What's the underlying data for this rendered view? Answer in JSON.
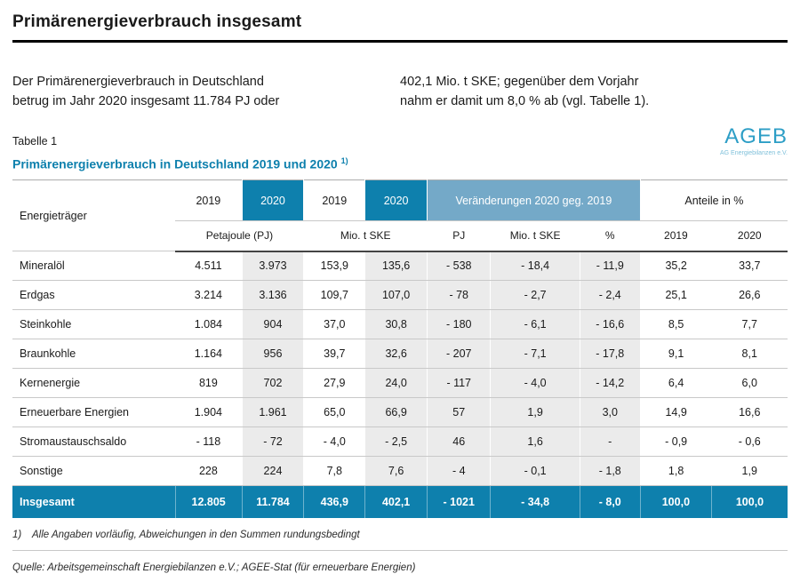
{
  "page": {
    "title": "Primärenergieverbrauch insgesamt",
    "intro": {
      "left": "Der Primärenergieverbrauch in Deutschland\nbetrug im Jahr 2020 insgesamt 11.784 PJ oder",
      "right": "402,1 Mio. t SKE; gegenüber dem Vorjahr\nnahm er damit um 8,0 % ab (vgl. Tabelle 1)."
    },
    "table_label": "Tabelle 1",
    "logo": {
      "title": "AGEB",
      "subtitle": "AG Energiebilanzen e.V."
    },
    "table_title": "Primärenergieverbrauch in Deutschland 2019 und 2020 ",
    "table_title_footnote": "1)",
    "footnote": {
      "marker": "1)",
      "text": "Alle Angaben vorläufig, Abweichungen in den Summen rundungsbedingt"
    },
    "source": "Quelle: Arbeitsgemeinschaft Energiebilanzen e.V.; AGEE-Stat (für erneuerbare Energien)"
  },
  "table": {
    "row_header_label": "Energieträger",
    "year_headers": [
      "2019",
      "2020",
      "2019",
      "2020"
    ],
    "group_headers": {
      "changes": "Veränderungen 2020 geg. 2019",
      "shares": "Anteile in %"
    },
    "unit_headers": [
      "Petajoule (PJ)",
      "Mio. t SKE",
      "PJ",
      "Mio. t SKE",
      "%",
      "2019",
      "2020"
    ],
    "rows": [
      {
        "label": "Mineralöl",
        "values": [
          "4.511",
          "3.973",
          "153,9",
          "135,6",
          "- 538",
          "- 18,4",
          "- 11,9",
          "35,2",
          "33,7"
        ]
      },
      {
        "label": "Erdgas",
        "values": [
          "3.214",
          "3.136",
          "109,7",
          "107,0",
          "- 78",
          "- 2,7",
          "- 2,4",
          "25,1",
          "26,6"
        ]
      },
      {
        "label": "Steinkohle",
        "values": [
          "1.084",
          "904",
          "37,0",
          "30,8",
          "- 180",
          "- 6,1",
          "- 16,6",
          "8,5",
          "7,7"
        ]
      },
      {
        "label": "Braunkohle",
        "values": [
          "1.164",
          "956",
          "39,7",
          "32,6",
          "- 207",
          "- 7,1",
          "- 17,8",
          "9,1",
          "8,1"
        ]
      },
      {
        "label": "Kernenergie",
        "values": [
          "819",
          "702",
          "27,9",
          "24,0",
          "- 117",
          "- 4,0",
          "- 14,2",
          "6,4",
          "6,0"
        ]
      },
      {
        "label": "Erneuerbare Energien",
        "values": [
          "1.904",
          "1.961",
          "65,0",
          "66,9",
          "57",
          "1,9",
          "3,0",
          "14,9",
          "16,6"
        ]
      },
      {
        "label": "Stromaustauschsaldo",
        "values": [
          "- 118",
          "- 72",
          "- 4,0",
          "- 2,5",
          "46",
          "1,6",
          "-",
          "- 0,9",
          "- 0,6"
        ]
      },
      {
        "label": "Sonstige",
        "values": [
          "228",
          "224",
          "7,8",
          "7,6",
          "- 4",
          "- 0,1",
          "- 1,8",
          "1,8",
          "1,9"
        ]
      }
    ],
    "total": {
      "label": "Insgesamt",
      "values": [
        "12.805",
        "11.784",
        "436,9",
        "402,1",
        "- 1021",
        "- 34,8",
        "- 8,0",
        "100,0",
        "100,0"
      ]
    },
    "shaded_value_columns": [
      1,
      3,
      4,
      5,
      6
    ]
  },
  "colors": {
    "accent_blue": "#0e80ad",
    "light_blue": "#74a9c8",
    "cell_gray": "#ebebeb",
    "logo_blue": "#2d9ec6",
    "logo_blue_light": "#7fc0da"
  }
}
